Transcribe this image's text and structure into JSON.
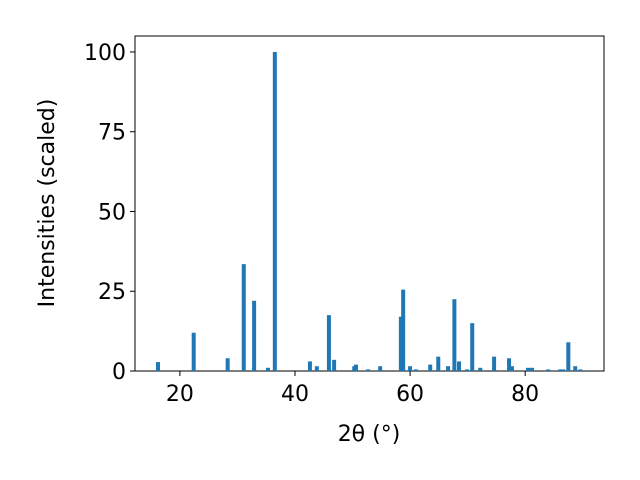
{
  "chart_data": {
    "type": "bar",
    "x_label": "2θ (°)",
    "y_label": "Intensities (scaled)",
    "x": [
      16.2,
      22.4,
      28.3,
      31.1,
      32.9,
      35.3,
      36.5,
      42.6,
      43.8,
      45.9,
      46.8,
      50.3,
      50.6,
      52.7,
      54.8,
      58.4,
      58.8,
      60.0,
      61.0,
      63.5,
      64.9,
      66.6,
      67.7,
      68.5,
      69.9,
      70.8,
      72.2,
      74.6,
      77.2,
      77.7,
      80.5,
      81.2,
      84.0,
      86.1,
      86.6,
      87.5,
      88.7,
      89.6
    ],
    "values": [
      2.8,
      12,
      4,
      33.5,
      22,
      1,
      100,
      3,
      1.5,
      17.5,
      3.5,
      1.5,
      2,
      0.5,
      1.5,
      17,
      25.5,
      1.5,
      0.5,
      2,
      4.5,
      1.5,
      22.5,
      3,
      0.5,
      15,
      1,
      4.5,
      4,
      1.5,
      1,
      1,
      0.5,
      0.5,
      0.5,
      9,
      1.5,
      0.5
    ],
    "color": "#1f77b4",
    "xlim": [
      12.2,
      93.7
    ],
    "ylim": [
      0,
      105
    ],
    "xticks": [
      20,
      40,
      60,
      80
    ],
    "yticks": [
      0,
      25,
      50,
      75,
      100
    ],
    "grid": false
  }
}
